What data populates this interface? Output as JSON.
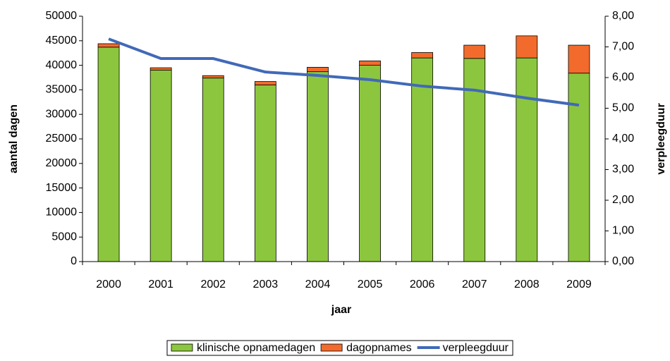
{
  "chart_data": {
    "type": "bar",
    "stacked": true,
    "x_label": "jaar",
    "y_label": "aantal dagen",
    "y2_label": "verpleegduur",
    "categories": [
      "2000",
      "2001",
      "2002",
      "2003",
      "2004",
      "2005",
      "2006",
      "2007",
      "2008",
      "2009"
    ],
    "series": [
      {
        "name": "klinische opnamedagen",
        "type": "bar",
        "color": "#8cc63e",
        "values": [
          43700,
          39000,
          37400,
          36000,
          38700,
          40000,
          41500,
          41400,
          41500,
          38400
        ]
      },
      {
        "name": "dagopnames",
        "type": "bar",
        "color": "#f26b2c",
        "values": [
          700,
          500,
          500,
          700,
          900,
          900,
          1100,
          2700,
          4500,
          5700
        ]
      },
      {
        "name": "verpleegduur",
        "type": "line",
        "axis": "y2",
        "color": "#4169b8",
        "values": [
          7.26,
          6.62,
          6.62,
          6.18,
          6.07,
          5.93,
          5.72,
          5.59,
          5.33,
          5.1
        ]
      }
    ],
    "ylim": [
      0,
      50000
    ],
    "yticks": [
      0,
      5000,
      10000,
      15000,
      20000,
      25000,
      30000,
      35000,
      40000,
      45000,
      50000
    ],
    "y2lim": [
      0,
      8
    ],
    "y2ticks": [
      {
        "value": 0,
        "label": "0,00"
      },
      {
        "value": 1,
        "label": "1,00"
      },
      {
        "value": 2,
        "label": "2,00"
      },
      {
        "value": 3,
        "label": "3,00"
      },
      {
        "value": 4,
        "label": "4,00"
      },
      {
        "value": 5,
        "label": "5,00"
      },
      {
        "value": 6,
        "label": "6,00"
      },
      {
        "value": 7,
        "label": "7,00"
      },
      {
        "value": 8,
        "label": "8,00"
      }
    ],
    "legend": "bottom"
  }
}
